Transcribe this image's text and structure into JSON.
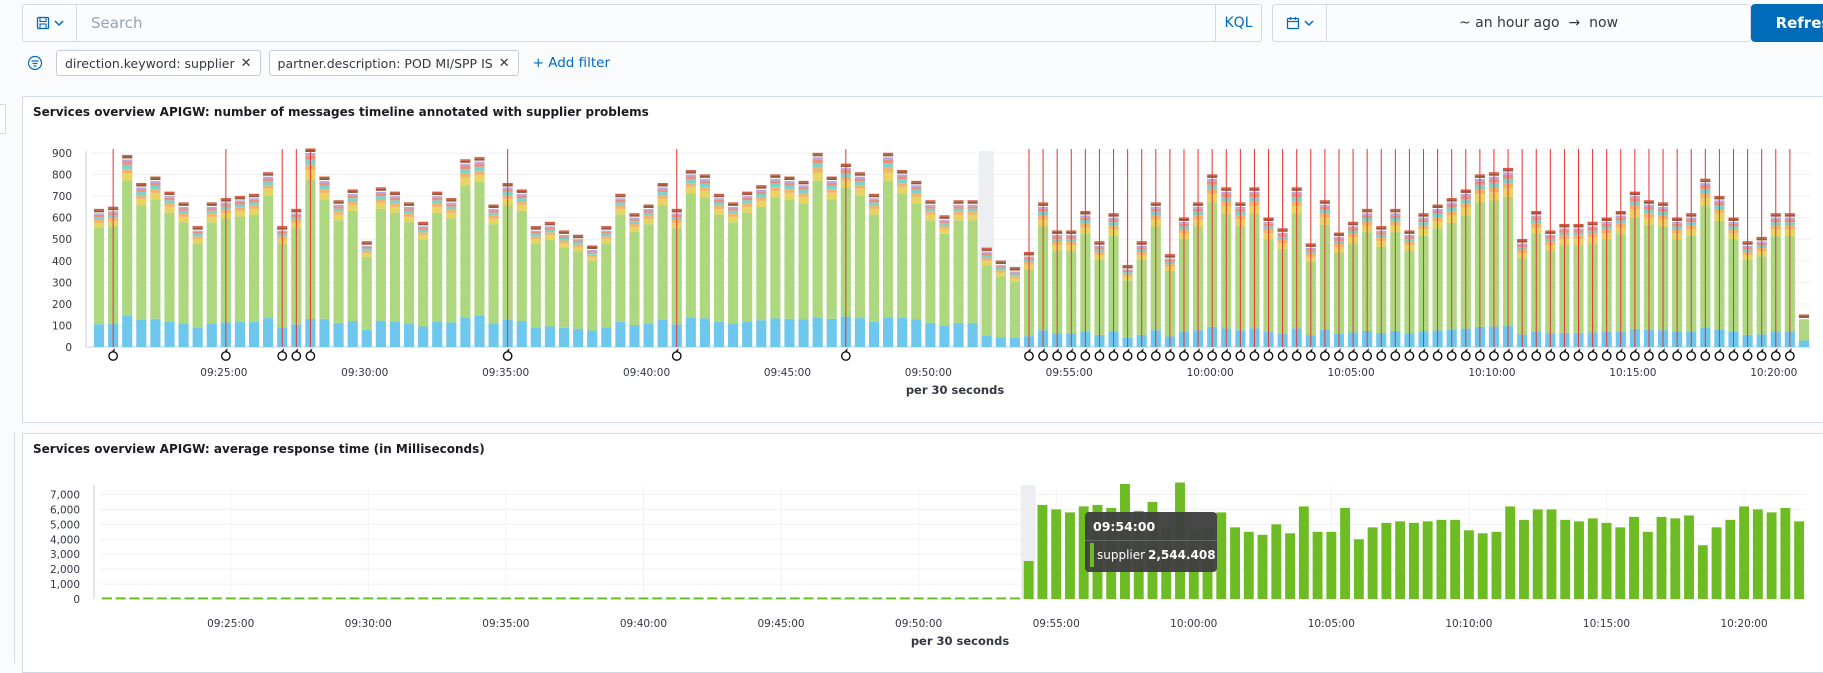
{
  "query_bar": {
    "search_placeholder": "Search",
    "language": "KQL",
    "time_start": "~ an hour ago",
    "arrow": "→",
    "time_end": "now",
    "refresh_label": "Refresh"
  },
  "filters": [
    {
      "label": "direction.keyword: supplier"
    },
    {
      "label": "partner.description: POD MI/SPP IS"
    }
  ],
  "add_filter_label": "+ Add filter",
  "icons": {
    "save": "save-icon",
    "calendar": "calendar-icon",
    "refresh": "refresh-icon",
    "filter_options": "filter-options-icon",
    "annotation": "flame-annotation-icon"
  },
  "colors": {
    "accent": "#006bb8",
    "annotation_line": "#e7332f",
    "stack": [
      "#6ec8ee",
      "#aed880",
      "#e7d463",
      "#f0b46c",
      "#7fd1c9",
      "#e88f80",
      "#b8a6e0",
      "#8b5e3c",
      "#d45a45"
    ],
    "response_bar": "#6dbc24"
  },
  "panel1": {
    "title": "Services overview APIGW: number of messages timeline annotated with supplier problems",
    "chart_data": {
      "type": "bar",
      "stacked": true,
      "xlabel": "per 30 seconds",
      "ylabel": "",
      "ylim": [
        0,
        900
      ],
      "yticks": [
        0,
        100,
        200,
        300,
        400,
        500,
        600,
        700,
        800,
        900
      ],
      "xtick_labels": [
        "09:25:00",
        "09:30:00",
        "09:35:00",
        "09:40:00",
        "09:45:00",
        "09:50:00",
        "09:55:00",
        "10:00:00",
        "10:05:00",
        "10:10:00",
        "10:15:00",
        "10:20:00"
      ],
      "totals_before_outage": [
        620,
        630,
        870,
        740,
        770,
        700,
        650,
        540,
        650,
        670,
        680,
        690,
        790,
        540,
        620,
        900,
        770,
        660,
        710,
        470,
        720,
        700,
        650,
        560,
        700,
        670,
        850,
        860,
        640,
        740,
        710,
        540,
        560,
        520,
        500,
        450,
        540,
        690,
        600,
        640,
        740,
        620,
        800,
        780,
        690,
        650,
        700,
        730,
        780,
        770,
        750,
        880,
        770,
        830,
        790,
        690,
        880,
        800,
        750,
        660,
        590,
        660,
        660
      ],
      "totals_after_outage": [
        440,
        380,
        350,
        420,
        650,
        520,
        520,
        610,
        470,
        600,
        360,
        470,
        650,
        410,
        580,
        650,
        780,
        720,
        650,
        720,
        580,
        530,
        720,
        460,
        660,
        510,
        560,
        620,
        540,
        620,
        520,
        600,
        640,
        670,
        710,
        780,
        790,
        810,
        480,
        610,
        520,
        550,
        550,
        560,
        580,
        610,
        700,
        660,
        650,
        580,
        600,
        760,
        680,
        580,
        470,
        490,
        600,
        600,
        130
      ],
      "annotations_at_bar_index": [
        1,
        9,
        13,
        14,
        15,
        29,
        41,
        53,
        66,
        67,
        68,
        69,
        70,
        71,
        72,
        73,
        74,
        75,
        76,
        77,
        78,
        79,
        80,
        81,
        82,
        83,
        84,
        85,
        86,
        87,
        88,
        89,
        90,
        91,
        92,
        93,
        94,
        95,
        96,
        97,
        98,
        99,
        100,
        101,
        102,
        103,
        104,
        105,
        106,
        107,
        108,
        109,
        110,
        111,
        112,
        113,
        114,
        115,
        116,
        117,
        118,
        119,
        120
      ]
    }
  },
  "panel2": {
    "title": "Services overview APIGW: average response time (in Milliseconds)",
    "chart_data": {
      "type": "bar",
      "xlabel": "per 30 seconds",
      "ylabel": "",
      "ylim": [
        0,
        7500
      ],
      "ytick_labels": [
        "0",
        "1,000",
        "2,000",
        "3,000",
        "4,000",
        "5,000",
        "6,000",
        "7,000"
      ],
      "xtick_labels": [
        "09:25:00",
        "09:30:00",
        "09:35:00",
        "09:40:00",
        "09:45:00",
        "09:50:00",
        "09:55:00",
        "10:00:00",
        "10:05:00",
        "10:10:00",
        "10:15:00",
        "10:20:00"
      ],
      "series": [
        {
          "name": "supplier",
          "values_before_outage": "approximately 40 ms for each of the first 67 bars",
          "values": [
            2544.408,
            6300,
            6000,
            5800,
            6200,
            6300,
            6100,
            7700,
            5900,
            6500,
            4800,
            7800,
            4600,
            4700,
            5800,
            4800,
            4500,
            4300,
            5000,
            4400,
            6200,
            4500,
            4500,
            6100,
            4000,
            4800,
            5100,
            5200,
            5100,
            5200,
            5300,
            5300,
            4600,
            4400,
            4500,
            6200,
            5300,
            6000,
            6000,
            5300,
            5200,
            5400,
            5100,
            4800,
            5500,
            4500,
            5500,
            5400,
            5600,
            3600,
            4800,
            5300,
            6200,
            6000,
            5800,
            6100,
            5200
          ]
        }
      ],
      "tooltip": {
        "time": "09:54:00",
        "series": "supplier",
        "value": "2,544.408"
      }
    }
  }
}
